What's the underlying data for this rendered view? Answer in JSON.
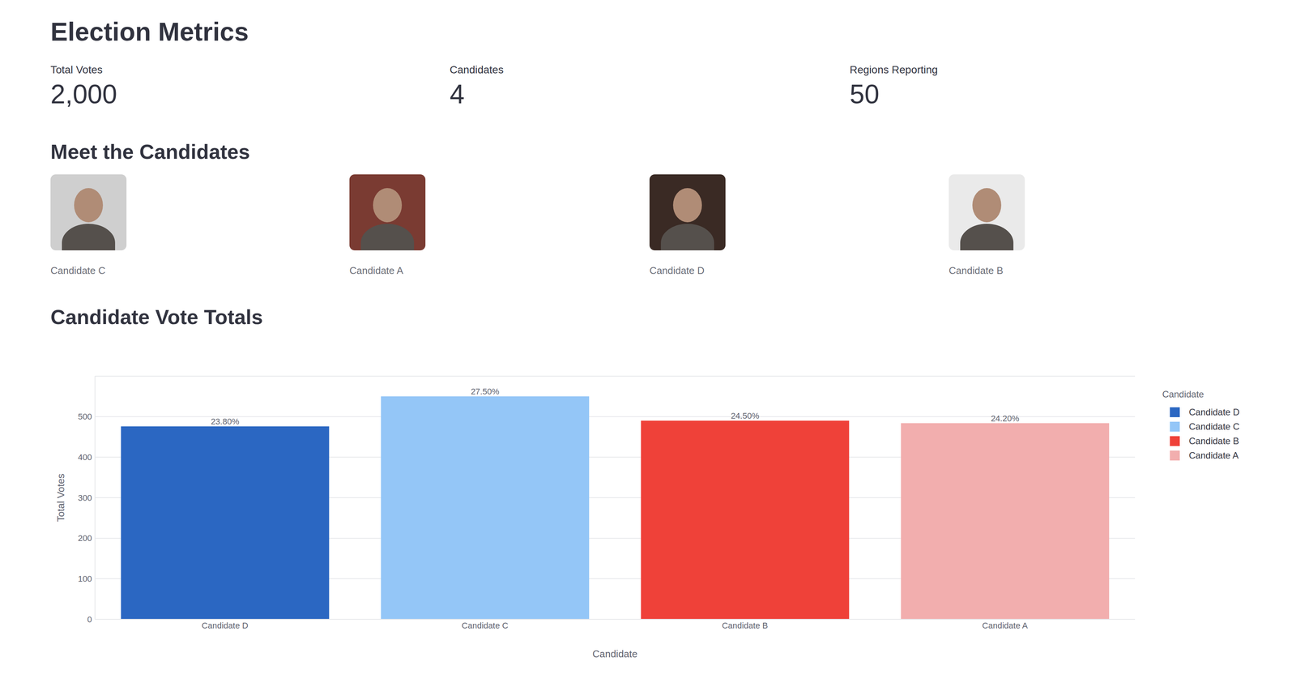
{
  "title": "Election Metrics",
  "metrics": [
    {
      "label": "Total Votes",
      "value": "2,000"
    },
    {
      "label": "Candidates",
      "value": "4"
    },
    {
      "label": "Regions Reporting",
      "value": "50"
    }
  ],
  "candidates_section": {
    "title": "Meet the Candidates",
    "names": [
      "Candidate C",
      "Candidate A",
      "Candidate D",
      "Candidate B"
    ]
  },
  "chart_data": {
    "type": "bar",
    "title": "Candidate Vote Totals",
    "x_label": "Candidate",
    "y_label": "Total Votes",
    "categories": [
      "Candidate D",
      "Candidate C",
      "Candidate B",
      "Candidate A"
    ],
    "values": [
      476,
      550,
      490,
      484
    ],
    "share_labels": [
      "23.80%",
      "27.50%",
      "24.50%",
      "24.20%"
    ],
    "colors": [
      "#2b67c2",
      "#94c6f7",
      "#ef4139",
      "#f2aeae"
    ],
    "ylim": [
      0,
      600
    ],
    "yticks": [
      0,
      100,
      200,
      300,
      400,
      500
    ],
    "grid": true,
    "legend_title": "Candidate",
    "legend": "top-right"
  }
}
